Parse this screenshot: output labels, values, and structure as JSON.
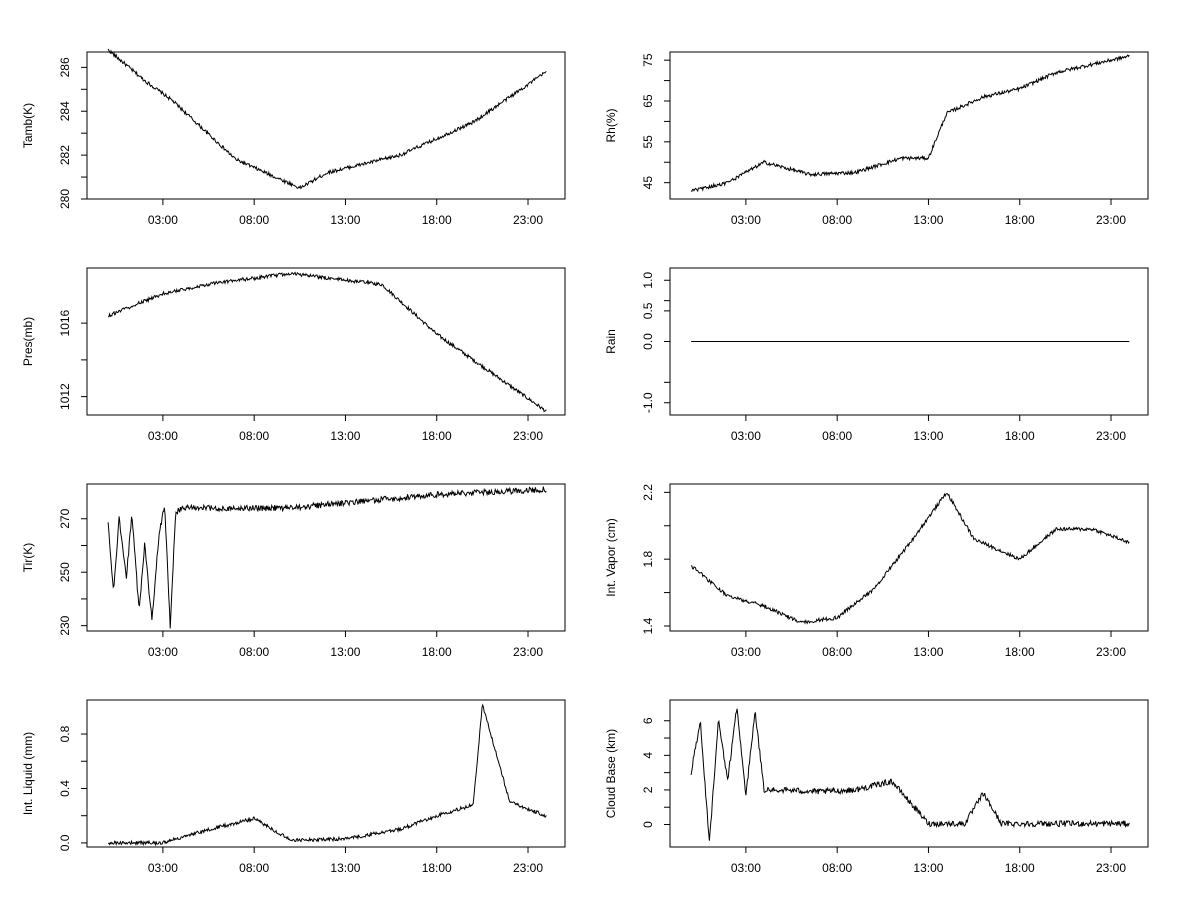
{
  "figure": {
    "shared_x_ticks": [
      "03:00",
      "08:00",
      "13:00",
      "18:00",
      "23:00"
    ]
  },
  "chart_data": [
    {
      "type": "line",
      "ylabel": "Tamb(K)",
      "ylim": [
        280,
        286.7
      ],
      "y_ticks": [
        280,
        282,
        284,
        286
      ],
      "x_ticks": [
        "03:00",
        "08:00",
        "13:00",
        "18:00",
        "23:00"
      ],
      "x_hours": [
        0,
        2,
        3.5,
        7,
        10.5,
        12,
        16,
        20,
        24
      ],
      "y": [
        286.8,
        285.4,
        284.5,
        281.8,
        280.5,
        281.2,
        282,
        283.5,
        285.8
      ],
      "grid": false
    },
    {
      "type": "line",
      "ylabel": "Rh(%)",
      "ylim": [
        41,
        77
      ],
      "y_ticks": [
        45,
        55,
        65,
        75
      ],
      "x_ticks": [
        "03:00",
        "08:00",
        "13:00",
        "18:00",
        "23:00"
      ],
      "x_hours": [
        0,
        2,
        4,
        6.5,
        9,
        11.5,
        13,
        14,
        16,
        18,
        20,
        24
      ],
      "y": [
        43,
        45,
        50,
        47,
        47.5,
        51,
        51,
        62,
        66,
        68,
        72,
        76
      ],
      "grid": false
    },
    {
      "type": "line",
      "ylabel": "Pres(mb)",
      "ylim": [
        1011,
        1019
      ],
      "y_ticks": [
        1012,
        1016
      ],
      "x_ticks": [
        "03:00",
        "08:00",
        "13:00",
        "18:00",
        "23:00"
      ],
      "x_hours": [
        0,
        3,
        6,
        10,
        15,
        18,
        24
      ],
      "y": [
        1016.4,
        1017.6,
        1018.2,
        1018.7,
        1018.1,
        1015.4,
        1011.2
      ],
      "grid": false
    },
    {
      "type": "line",
      "ylabel": "Rain",
      "ylim": [
        -1.2,
        1.2
      ],
      "y_ticks": [
        -1.0,
        0.0,
        0.5,
        1.0
      ],
      "y_tick_labels": [
        "-1.0",
        "0.0",
        "0.5",
        "1.0"
      ],
      "x_ticks": [
        "03:00",
        "08:00",
        "13:00",
        "18:00",
        "23:00"
      ],
      "x_hours": [
        0,
        24
      ],
      "y": [
        0,
        0
      ],
      "grid": false
    },
    {
      "type": "line",
      "ylabel": "Tir(K)",
      "ylim": [
        228,
        283
      ],
      "y_ticks": [
        230,
        250,
        270
      ],
      "x_ticks": [
        "03:00",
        "08:00",
        "13:00",
        "18:00",
        "23:00"
      ],
      "x_hours": [
        0,
        0.3,
        0.6,
        1,
        1.3,
        1.7,
        2,
        2.4,
        2.8,
        3.1,
        3.4,
        3.7,
        4,
        6,
        10,
        13,
        18,
        24
      ],
      "y": [
        268,
        242,
        270,
        248,
        272,
        235,
        260,
        232,
        265,
        275,
        230,
        272,
        274,
        274,
        274,
        276,
        279,
        281
      ],
      "grid": false
    },
    {
      "type": "line",
      "ylabel": "Int. Vapor (cm)",
      "ylim": [
        1.37,
        2.25
      ],
      "y_ticks": [
        1.4,
        1.8,
        2.2
      ],
      "x_ticks": [
        "03:00",
        "08:00",
        "13:00",
        "18:00",
        "23:00"
      ],
      "x_hours": [
        0,
        2,
        4,
        6,
        8,
        10,
        12,
        14,
        15.5,
        18,
        20,
        22,
        24
      ],
      "y": [
        1.76,
        1.58,
        1.52,
        1.42,
        1.45,
        1.62,
        1.9,
        2.2,
        1.92,
        1.8,
        1.98,
        1.98,
        1.9
      ],
      "grid": false
    },
    {
      "type": "line",
      "ylabel": "Int. Liquid (mm)",
      "ylim": [
        -0.03,
        1.05
      ],
      "y_ticks": [
        0.0,
        0.4,
        0.8
      ],
      "y_tick_labels": [
        "0.0",
        "0.4",
        "0.8"
      ],
      "x_ticks": [
        "03:00",
        "08:00",
        "13:00",
        "18:00",
        "23:00"
      ],
      "x_hours": [
        0,
        3,
        5,
        8,
        10,
        13,
        16,
        18,
        20,
        20.5,
        22,
        24
      ],
      "y": [
        0,
        0,
        0.08,
        0.18,
        0.02,
        0.03,
        0.1,
        0.2,
        0.28,
        1.02,
        0.3,
        0.2
      ],
      "grid": false
    },
    {
      "type": "line",
      "ylabel": "Cloud Base (km)",
      "ylim": [
        -1.3,
        7.2
      ],
      "y_ticks": [
        0,
        2,
        4,
        6
      ],
      "x_ticks": [
        "03:00",
        "08:00",
        "13:00",
        "18:00",
        "23:00"
      ],
      "x_hours": [
        0,
        0.5,
        1,
        1.5,
        2,
        2.5,
        3,
        3.5,
        4,
        5,
        7,
        9,
        11,
        13,
        15,
        16,
        17,
        24
      ],
      "y": [
        3,
        6,
        -1,
        6,
        2.5,
        6.8,
        1.7,
        6.5,
        2,
        2,
        1.9,
        2,
        2.5,
        0.05,
        0.05,
        1.8,
        0.05,
        0.05
      ],
      "grid": false
    }
  ]
}
